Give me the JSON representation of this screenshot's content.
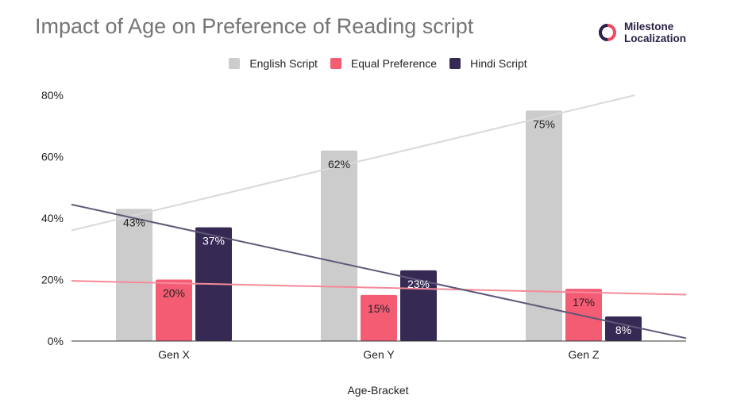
{
  "chart_data": {
    "type": "bar",
    "title": "Impact of Age on Preference of Reading script",
    "xlabel": "Age-Bracket",
    "ylabel": "",
    "categories": [
      "Gen X",
      "Gen Y",
      "Gen Z"
    ],
    "ylim": [
      0,
      0.8
    ],
    "y_ticks": [
      0,
      0.2,
      0.4,
      0.6,
      0.8
    ],
    "y_tick_labels": [
      "0%",
      "20%",
      "40%",
      "60%",
      "80%"
    ],
    "grid": false,
    "legend_position": "top",
    "trendlines": true,
    "series": [
      {
        "name": "English Script",
        "color": "#cccccc",
        "values": [
          0.43,
          0.62,
          0.75
        ],
        "labels": [
          "43%",
          "62%",
          "75%"
        ],
        "label_color": "#222222"
      },
      {
        "name": "Equal Preference",
        "color": "#f45c74",
        "values": [
          0.2,
          0.15,
          0.17
        ],
        "labels": [
          "20%",
          "15%",
          "17%"
        ],
        "label_color": "#222222"
      },
      {
        "name": "Hindi Script",
        "color": "#362a55",
        "values": [
          0.37,
          0.23,
          0.08
        ],
        "labels": [
          "37%",
          "23%",
          "8%"
        ],
        "label_color": "#ffffff"
      }
    ],
    "trendline_colors": [
      "#d9d9d9",
      "#f58a9a",
      "#5f5878"
    ]
  },
  "brand": {
    "line1": "Milestone",
    "line2": "Localization",
    "logo_icon": "ring-logo-icon",
    "logo_color": "#ef4a63",
    "text_color": "#2b2148"
  }
}
